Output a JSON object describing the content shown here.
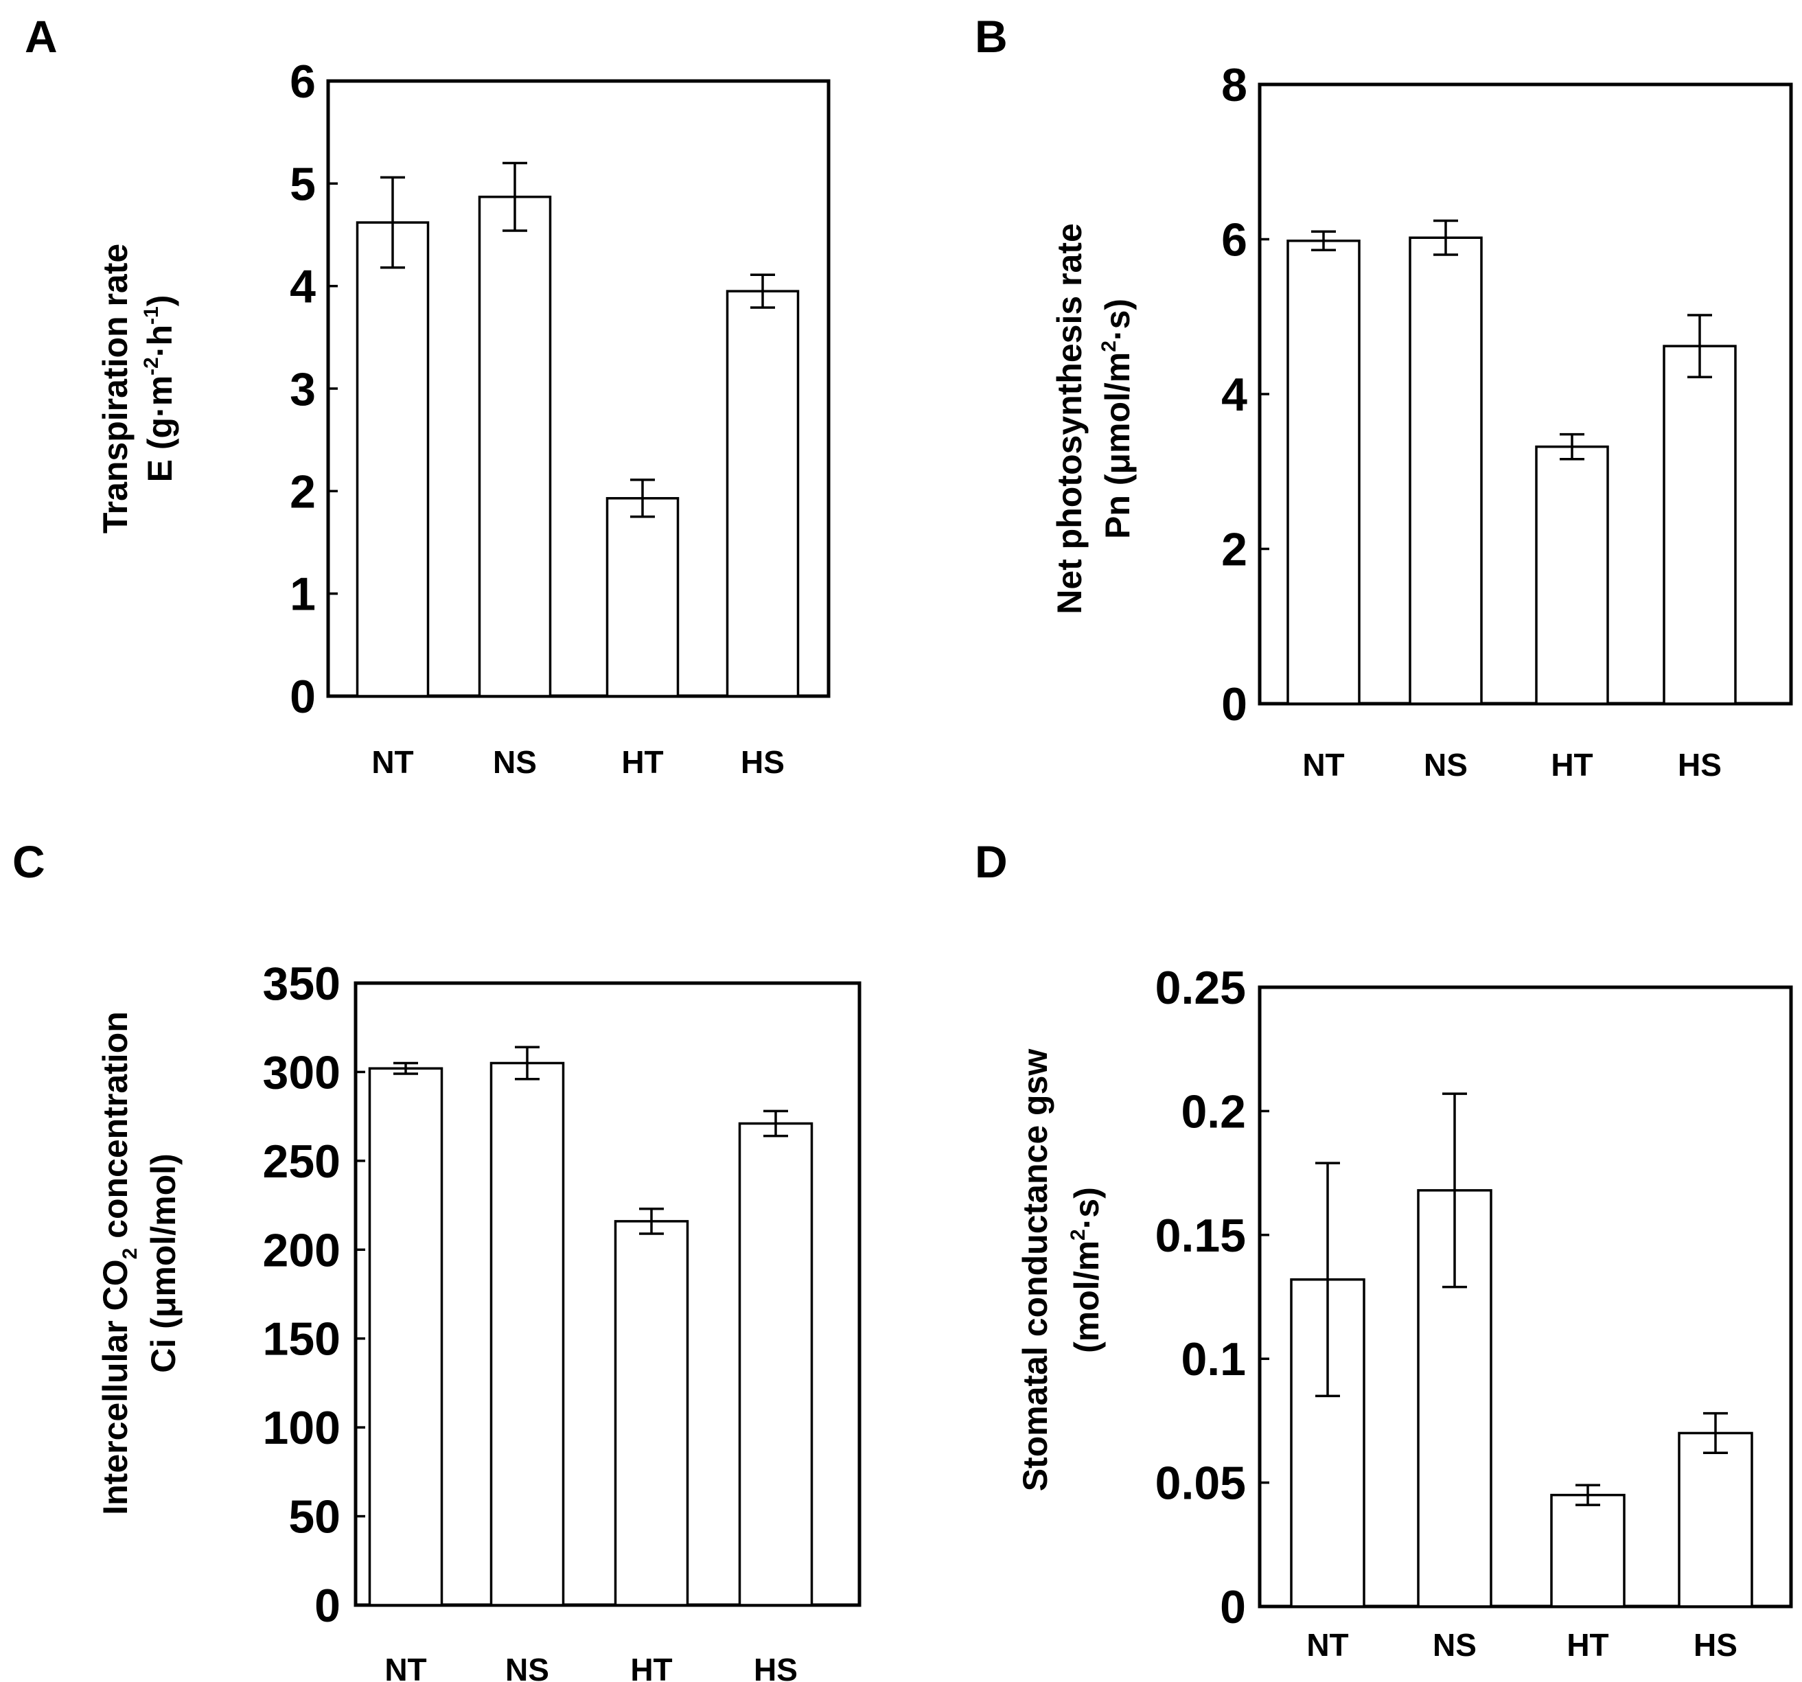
{
  "chart_data": [
    {
      "panel": "A",
      "type": "bar",
      "categories": [
        "NT",
        "NS",
        "HT",
        "HS"
      ],
      "values": [
        4.62,
        4.87,
        1.93,
        3.95
      ],
      "errors": [
        0.44,
        0.33,
        0.18,
        0.16
      ],
      "ylim": [
        0,
        6
      ],
      "yticks": [
        "0",
        "1",
        "2",
        "3",
        "4",
        "5",
        "6"
      ],
      "ylabel_line1": "Transpiration rate",
      "ylabel_line2": "E (g·m",
      "ylabel_sup1": "-2",
      "ylabel_mid": "·h",
      "ylabel_sup2": "-1",
      "ylabel_end": ")"
    },
    {
      "panel": "B",
      "type": "bar",
      "categories": [
        "NT",
        "NS",
        "HT",
        "HS"
      ],
      "values": [
        5.98,
        6.02,
        3.32,
        4.62
      ],
      "errors": [
        0.12,
        0.22,
        0.16,
        0.4
      ],
      "ylim": [
        0,
        8
      ],
      "yticks": [
        "0",
        "2",
        "4",
        "6",
        "8"
      ],
      "ylabel_line1": "Net photosynthesis rate",
      "ylabel_line2": "Pn (μmol/m",
      "ylabel_sup1": "2",
      "ylabel_end": "·s)"
    },
    {
      "panel": "C",
      "type": "bar",
      "categories": [
        "NT",
        "NS",
        "HT",
        "HS"
      ],
      "values": [
        302,
        305,
        216,
        271
      ],
      "errors": [
        3,
        9,
        7,
        7
      ],
      "ylim": [
        0,
        350
      ],
      "yticks": [
        "0",
        "50",
        "100",
        "150",
        "200",
        "250",
        "300",
        "350"
      ],
      "ylabel_line1": "Intercellular CO",
      "ylabel_sub": "2",
      "ylabel_line1_end": " concentration",
      "ylabel_line2": "Ci (μmol/mol)"
    },
    {
      "panel": "D",
      "type": "bar",
      "categories": [
        "NT",
        "NS",
        "HT",
        "HS"
      ],
      "values": [
        0.132,
        0.168,
        0.045,
        0.07
      ],
      "errors": [
        0.047,
        0.039,
        0.004,
        0.008
      ],
      "ylim": [
        0,
        0.25
      ],
      "yticks": [
        "0",
        "0.05",
        "0.1",
        "0.15",
        "0.2",
        "0.25"
      ],
      "ylabel_line1": "Stomatal  conductance  gsw",
      "ylabel_line2": "(mol/m",
      "ylabel_sup1": "2",
      "ylabel_end": "·s)"
    }
  ]
}
